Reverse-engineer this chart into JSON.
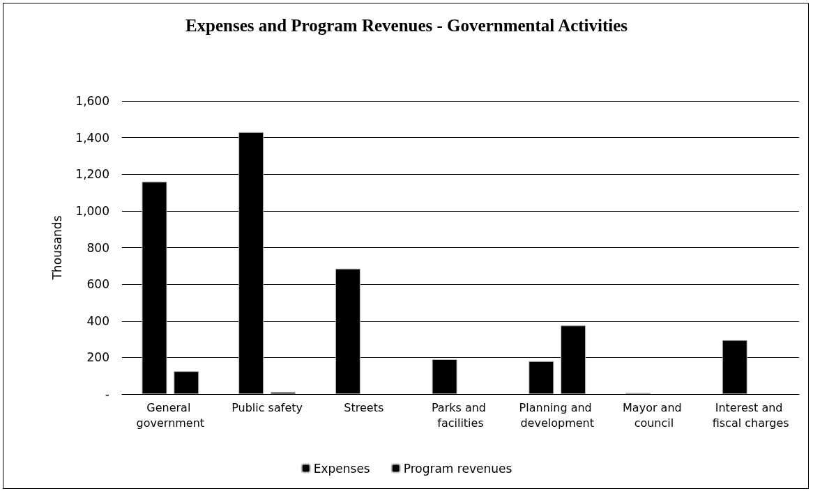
{
  "chart_data": {
    "type": "bar",
    "title": "Expenses and Program Revenues - Governmental Activities",
    "ylabel": "Thousands",
    "categories": [
      "General government",
      "Public safety",
      "Streets",
      "Parks and facilities",
      "Planning and development",
      "Mayor and council",
      "Interest and fiscal charges"
    ],
    "series": [
      {
        "name": "Expenses",
        "color": "#000000",
        "values": [
          1160,
          1430,
          685,
          190,
          180,
          8,
          295
        ]
      },
      {
        "name": "Program revenues",
        "color": "#000000",
        "values": [
          125,
          12,
          null,
          null,
          375,
          null,
          null
        ]
      }
    ],
    "ylim": [
      0,
      1600
    ],
    "yticks": [
      {
        "value": 0,
        "label": "-"
      },
      {
        "value": 200,
        "label": "200"
      },
      {
        "value": 400,
        "label": "400"
      },
      {
        "value": 600,
        "label": "600"
      },
      {
        "value": 800,
        "label": "800"
      },
      {
        "value": 1000,
        "label": "1,000"
      },
      {
        "value": 1200,
        "label": "1,200"
      },
      {
        "value": 1400,
        "label": "1,400"
      },
      {
        "value": 1600,
        "label": "1,600"
      }
    ],
    "grid": "y",
    "legend": "bottom"
  }
}
